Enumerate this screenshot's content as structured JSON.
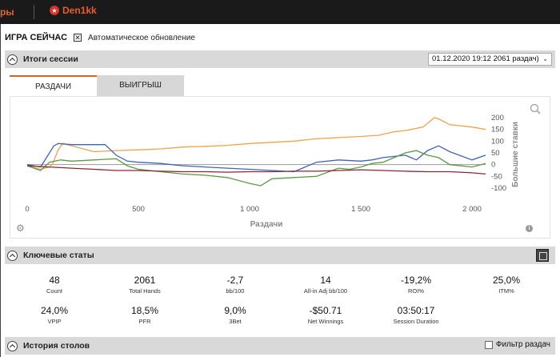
{
  "topbar": {
    "left_tab": "ры",
    "tab_name": "Den1kk",
    "tab_logo": "★"
  },
  "header": {
    "title": "ИГРА СЕЙЧАС",
    "auto_update_label": "Автоматическое обновление",
    "auto_update_checked": "✕"
  },
  "session": {
    "title": "Итоги сессии",
    "select_value": "01.12.2020 19:12 2061 раздач)",
    "select_chevron": "⌄"
  },
  "tabs": [
    {
      "label": "РАЗДАЧИ",
      "active": true
    },
    {
      "label": "ВЫИГРЫШ",
      "active": false
    }
  ],
  "chart_data": {
    "type": "line",
    "xlabel": "Раздачи",
    "ylabel": "Большие ставки",
    "xlim": [
      0,
      2061
    ],
    "ylim": [
      -100,
      200
    ],
    "x_ticks": [
      "0",
      "500",
      "1 000",
      "1 500",
      "2 000"
    ],
    "y_ticks": [
      "200",
      "150",
      "100",
      "50",
      "0",
      "-50",
      "-100"
    ],
    "grid": false,
    "colors": {
      "orange": "#f0a24a",
      "blue": "#3f63b8",
      "green": "#5d9a44",
      "red": "#8c2631",
      "zero": "#999999"
    },
    "series": [
      {
        "color": "orange",
        "x": [
          0,
          60,
          100,
          115,
          140,
          160,
          300,
          400,
          500,
          600,
          700,
          800,
          900,
          1000,
          1100,
          1200,
          1300,
          1400,
          1500,
          1580,
          1650,
          1700,
          1780,
          1830,
          1850,
          1900,
          2000,
          2061
        ],
        "y": [
          -5,
          -20,
          -10,
          5,
          65,
          90,
          55,
          60,
          63,
          67,
          75,
          78,
          82,
          90,
          95,
          100,
          110,
          115,
          120,
          125,
          140,
          145,
          160,
          200,
          195,
          170,
          160,
          150
        ]
      },
      {
        "color": "blue",
        "x": [
          0,
          60,
          100,
          120,
          140,
          200,
          350,
          400,
          450,
          500,
          600,
          700,
          800,
          900,
          1000,
          1100,
          1200,
          1300,
          1400,
          1500,
          1550,
          1600,
          1700,
          1750,
          1800,
          1850,
          1900,
          2000,
          2061
        ],
        "y": [
          0,
          -10,
          50,
          80,
          90,
          85,
          85,
          40,
          15,
          10,
          5,
          -5,
          -10,
          -15,
          -20,
          -25,
          -30,
          10,
          20,
          15,
          20,
          30,
          40,
          20,
          60,
          80,
          55,
          20,
          40
        ]
      },
      {
        "color": "green",
        "x": [
          0,
          60,
          100,
          150,
          200,
          300,
          400,
          450,
          500,
          600,
          700,
          800,
          900,
          1000,
          1050,
          1100,
          1200,
          1300,
          1400,
          1450,
          1500,
          1550,
          1600,
          1650,
          1700,
          1750,
          1800,
          1850,
          1900,
          2000,
          2061
        ],
        "y": [
          -5,
          -25,
          10,
          20,
          15,
          20,
          25,
          -5,
          -20,
          -30,
          -40,
          -45,
          -55,
          -80,
          -90,
          -60,
          -55,
          -50,
          -15,
          -20,
          -10,
          5,
          10,
          30,
          50,
          60,
          40,
          30,
          0,
          -10,
          5
        ]
      },
      {
        "color": "red",
        "x": [
          0,
          100,
          200,
          300,
          400,
          500,
          600,
          700,
          800,
          900,
          1000,
          1100,
          1200,
          1300,
          1400,
          1500,
          1600,
          1700,
          1800,
          1900,
          2000,
          2061
        ],
        "y": [
          -5,
          -10,
          -15,
          -20,
          -25,
          -25,
          -28,
          -30,
          -30,
          -32,
          -30,
          -30,
          -28,
          -28,
          -25,
          -22,
          -25,
          -28,
          -30,
          -30,
          -35,
          -40
        ]
      }
    ]
  },
  "key_stats": {
    "title": "Ключевые статы",
    "items": [
      {
        "value": "48",
        "label": "Count"
      },
      {
        "value": "2061",
        "label": "Total Hands"
      },
      {
        "value": "-2,7",
        "label": "bb/100"
      },
      {
        "value": "14",
        "label": "All-in Adj bb/100"
      },
      {
        "value": "-19,2%",
        "label": "ROI%"
      },
      {
        "value": "25,0%",
        "label": "ITM%"
      },
      {
        "value": "24,0%",
        "label": "VPIP"
      },
      {
        "value": "18,5%",
        "label": "PFR"
      },
      {
        "value": "9,0%",
        "label": "3Bet"
      },
      {
        "value": "-$50.71",
        "label": "Net Winnings"
      },
      {
        "value": "03:50:17",
        "label": "Session Duration"
      }
    ]
  },
  "history": {
    "title": "История столов",
    "filter_label": "Фильтр раздач"
  }
}
